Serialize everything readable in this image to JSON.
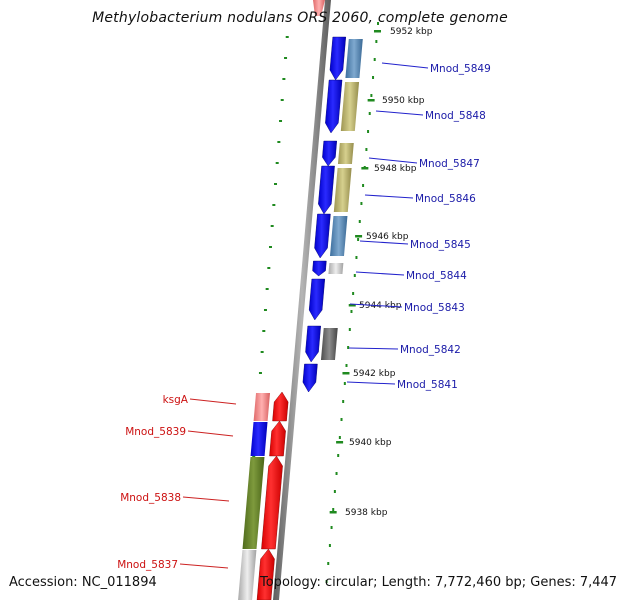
{
  "title": "Methylobacterium nodulans ORS 2060, complete genome",
  "footer": {
    "accession": "Accession: NC_011894",
    "summary": "Topology: circular; Length: 7,772,460 bp; Genes: 7,447"
  },
  "ticks": [
    "5952 kbp",
    "5950 kbp",
    "5948 kbp",
    "5946 kbp",
    "5944 kbp",
    "5942 kbp",
    "5940 kbp",
    "5938 kbp"
  ],
  "genes_forward": [
    "Mnod_5849",
    "Mnod_5848",
    "Mnod_5847",
    "Mnod_5846",
    "Mnod_5845",
    "Mnod_5844",
    "Mnod_5843",
    "Mnod_5842",
    "Mnod_5841"
  ],
  "genes_reverse": [
    "ksgA",
    "Mnod_5839",
    "Mnod_5838",
    "Mnod_5837"
  ],
  "colors": {
    "forward_gene": "#0000ee",
    "reverse_gene": "#ff0000",
    "forward_label": "#1a1aa8",
    "reverse_label": "#cc1111",
    "tick_dots": "#1f8a1f",
    "backbone": "#8a8a8a"
  }
}
